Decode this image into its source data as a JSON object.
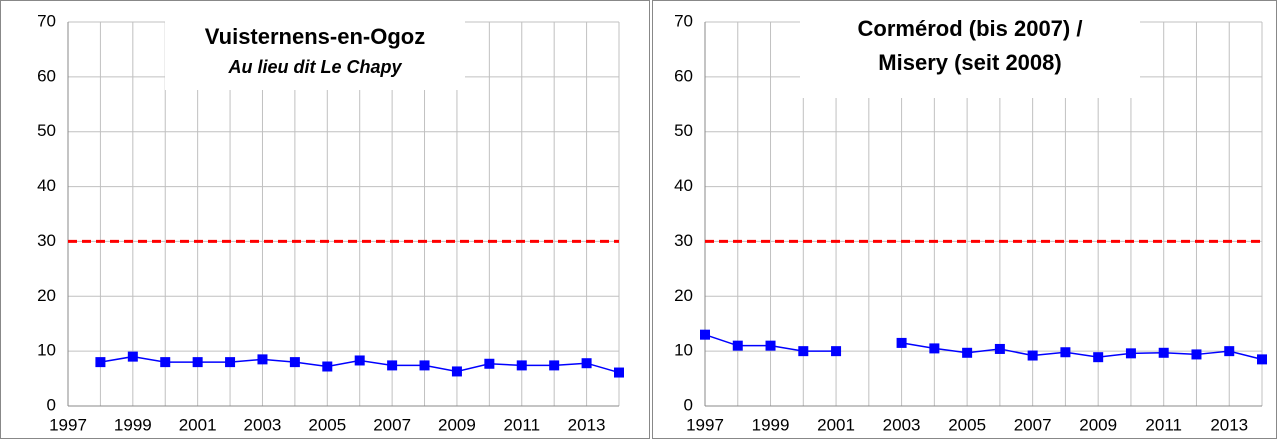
{
  "chart_data": [
    {
      "type": "line",
      "title_lines": [
        "Vuisternens-en-Ogoz"
      ],
      "subtitle": "Au lieu dit Le Chapy",
      "x": [
        1998,
        1999,
        2000,
        2001,
        2002,
        2003,
        2004,
        2005,
        2006,
        2007,
        2008,
        2009,
        2010,
        2011,
        2012,
        2013,
        2014
      ],
      "series": [
        {
          "color": "#0000ff",
          "values": [
            8,
            9,
            8,
            8,
            8,
            8.5,
            8,
            7.2,
            8.3,
            7.4,
            7.4,
            6.3,
            7.7,
            7.4,
            7.4,
            7.8,
            6.1
          ]
        }
      ],
      "threshold": {
        "value": 30,
        "color": "#ff0000"
      },
      "xlim": [
        1997,
        2014
      ],
      "xticks": [
        1997,
        1999,
        2001,
        2003,
        2005,
        2007,
        2009,
        2011,
        2013
      ],
      "xgrid": [
        1997,
        1998,
        1999,
        2000,
        2001,
        2002,
        2003,
        2004,
        2005,
        2006,
        2007,
        2008,
        2009,
        2010,
        2011,
        2012,
        2013,
        2014
      ],
      "ylim": [
        0,
        70
      ],
      "yticks": [
        0,
        10,
        20,
        30,
        40,
        50,
        60,
        70
      ],
      "grid": true
    },
    {
      "type": "line",
      "title_lines": [
        "Cormérod (bis 2007) /",
        "Misery (seit 2008)"
      ],
      "x": [
        1997,
        1998,
        1999,
        2000,
        2001,
        2002,
        2003,
        2004,
        2005,
        2006,
        2007,
        2008,
        2009,
        2010,
        2011,
        2012,
        2013,
        2014
      ],
      "series": [
        {
          "color": "#0000ff",
          "values": [
            13,
            11,
            11,
            10,
            10,
            null,
            11.5,
            10.5,
            9.7,
            10.4,
            9.2,
            9.8,
            8.9,
            9.6,
            9.7,
            9.4,
            10,
            8.5
          ]
        }
      ],
      "threshold": {
        "value": 30,
        "color": "#ff0000"
      },
      "xlim": [
        1997,
        2014
      ],
      "xticks": [
        1997,
        1999,
        2001,
        2003,
        2005,
        2007,
        2009,
        2011,
        2013
      ],
      "xgrid": [
        1997,
        1998,
        1999,
        2000,
        2001,
        2002,
        2003,
        2004,
        2005,
        2006,
        2007,
        2008,
        2009,
        2010,
        2011,
        2012,
        2013,
        2014
      ],
      "ylim": [
        0,
        70
      ],
      "yticks": [
        0,
        10,
        20,
        30,
        40,
        50,
        60,
        70
      ],
      "grid": true
    }
  ]
}
